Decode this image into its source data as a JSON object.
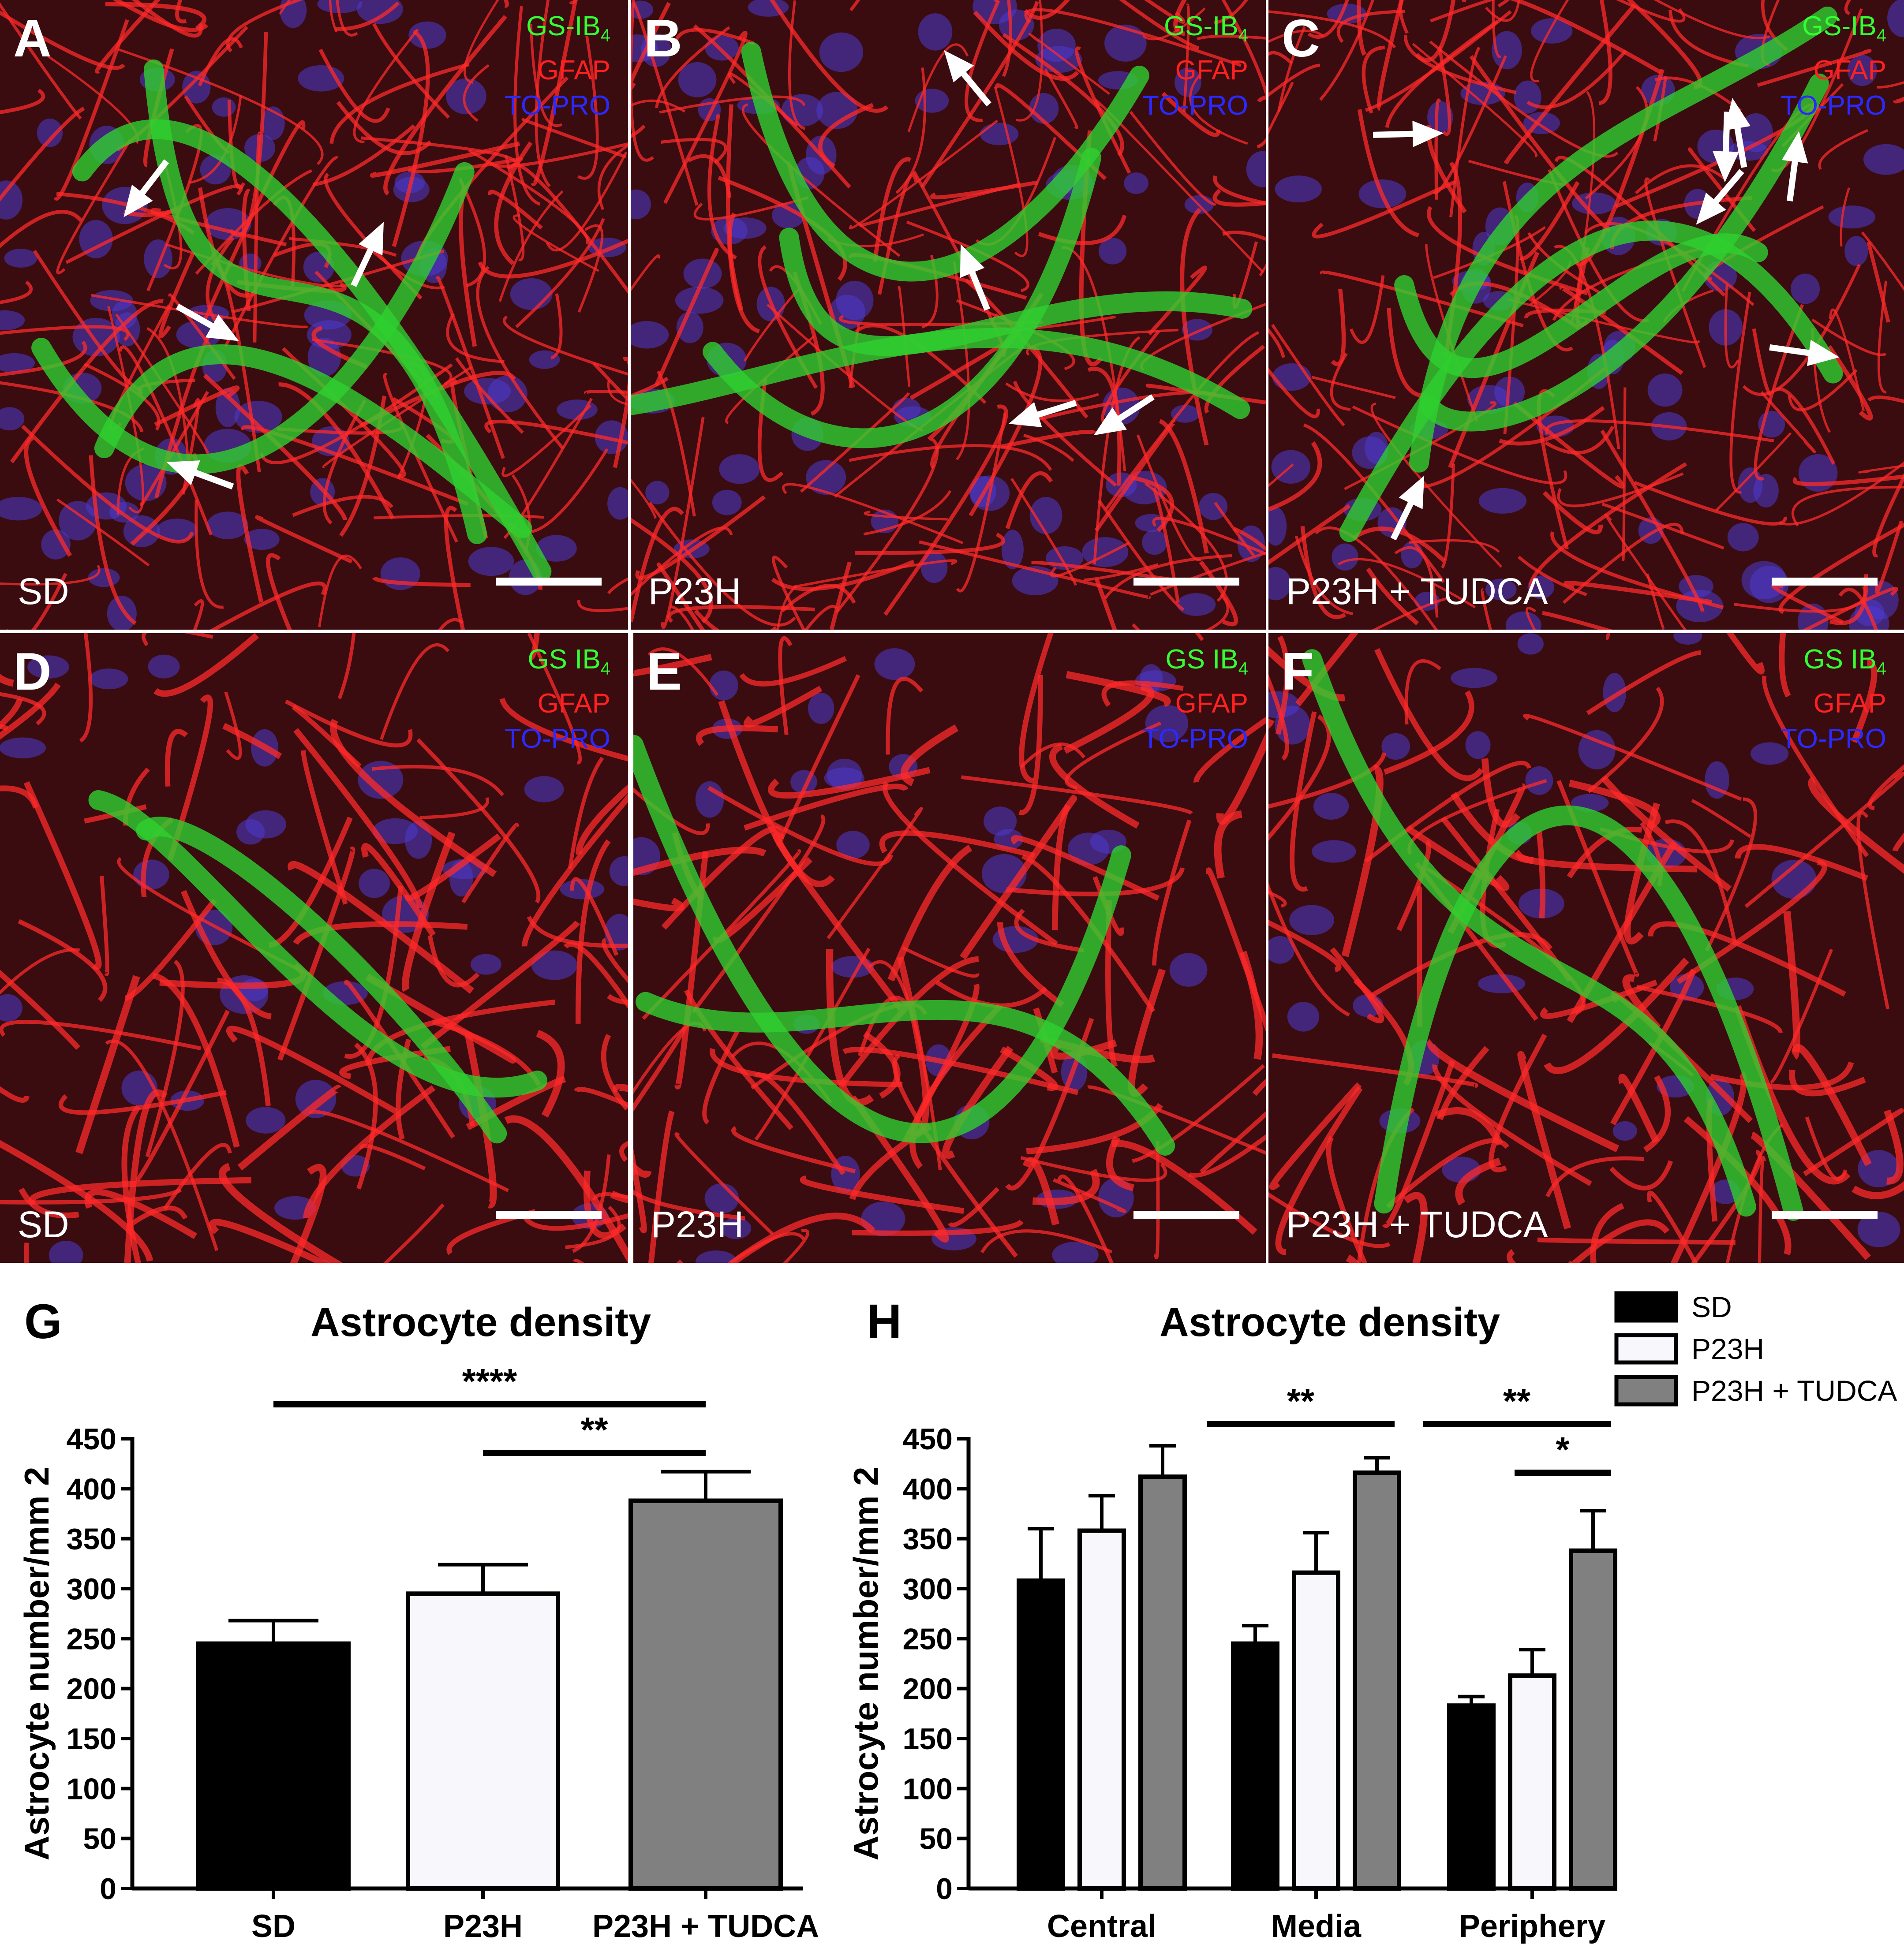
{
  "colors": {
    "gs_ib4": "#33ff33",
    "gfap": "#ff2020",
    "to_pro": "#2a2aff",
    "sd_fill": "#000000",
    "p23h_fill": "#f8f8fc",
    "tudca_fill": "#808080"
  },
  "panels": [
    {
      "id": "A",
      "label": "A",
      "stain": [
        "GS-IB",
        "4",
        "GFAP",
        "TO-PRO"
      ],
      "condition": "SD"
    },
    {
      "id": "B",
      "label": "B",
      "stain": [
        "GS-IB",
        "4",
        "GFAP",
        "TO-PRO"
      ],
      "condition": "P23H"
    },
    {
      "id": "C",
      "label": "C",
      "stain": [
        "GS-IB",
        "4",
        "GFAP",
        "TO-PRO"
      ],
      "condition": "P23H + TUDCA"
    },
    {
      "id": "D",
      "label": "D",
      "stain": [
        "GS IB",
        "4",
        "GFAP",
        "TO-PRO"
      ],
      "condition": "SD"
    },
    {
      "id": "E",
      "label": "E",
      "stain": [
        "GS IB",
        "4",
        "GFAP",
        "TO-PRO"
      ],
      "condition": "P23H"
    },
    {
      "id": "F",
      "label": "F",
      "stain": [
        "GS IB",
        "4",
        "GFAP",
        "TO-PRO"
      ],
      "condition": "P23H + TUDCA"
    }
  ],
  "chart_data": [
    {
      "panel_label": "G",
      "type": "bar",
      "title": "Astrocyte density",
      "ylabel": "Astrocyte number/mm 2",
      "ylim": [
        0,
        450
      ],
      "yticks": [
        "0",
        "50",
        "100",
        "150",
        "200",
        "250",
        "300",
        "350",
        "400",
        "450"
      ],
      "categories": [
        "SD",
        "P23H",
        "P23H + TUDCA"
      ],
      "values": [
        245,
        295,
        388
      ],
      "errors": [
        23,
        29,
        29
      ],
      "significance": [
        {
          "from": 0,
          "to": 2,
          "label": "****"
        },
        {
          "from": 1,
          "to": 2,
          "label": "**"
        }
      ]
    },
    {
      "panel_label": "H",
      "type": "bar",
      "title": "Astrocyte density",
      "ylabel": "Astrocyte number/mm 2",
      "ylim": [
        0,
        450
      ],
      "yticks": [
        "0",
        "50",
        "100",
        "150",
        "200",
        "250",
        "300",
        "350",
        "400",
        "450"
      ],
      "categories": [
        "Central",
        "Media",
        "Periphery"
      ],
      "series": [
        {
          "name": "SD",
          "values": [
            308,
            245,
            183
          ],
          "errors": [
            52,
            18,
            9
          ]
        },
        {
          "name": "P23H",
          "values": [
            358,
            316,
            213
          ],
          "errors": [
            35,
            40,
            26
          ]
        },
        {
          "name": "P23H + TUDCA",
          "values": [
            412,
            416,
            338
          ],
          "errors": [
            31,
            15,
            40
          ]
        }
      ],
      "legend": "top-right",
      "significance": [
        {
          "group": 1,
          "from": 0,
          "to": 2,
          "label": "**"
        },
        {
          "group": 2,
          "from": 0,
          "to": 2,
          "label": "**"
        },
        {
          "group": 2,
          "from": 1,
          "to": 2,
          "label": "*"
        }
      ]
    }
  ]
}
